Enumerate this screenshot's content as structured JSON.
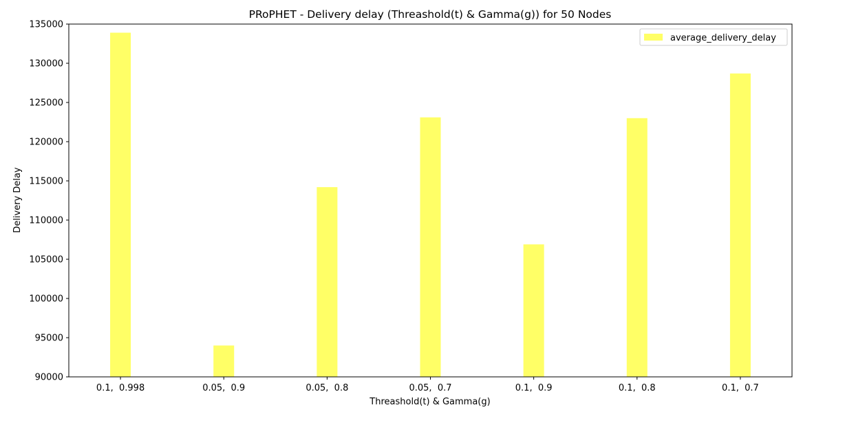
{
  "chart_data": {
    "type": "bar",
    "title": "PRoPHET - Delivery delay (Threashold(t) & Gamma(g)) for 50 Nodes",
    "xlabel": "Threashold(t) & Gamma(g)",
    "ylabel": "Delivery Delay",
    "categories": [
      "0.1,  0.998",
      "0.05,  0.9",
      "0.05,  0.8",
      "0.05,  0.7",
      "0.1,  0.9",
      "0.1,  0.8",
      "0.1,  0.7"
    ],
    "series": [
      {
        "name": "average_delivery_delay",
        "values": [
          133900,
          94000,
          114200,
          123100,
          106900,
          123000,
          128700
        ],
        "color": "#ffff66"
      }
    ],
    "ylim": [
      90000,
      135000
    ],
    "yticks": [
      90000,
      95000,
      100000,
      105000,
      110000,
      115000,
      120000,
      125000,
      130000,
      135000
    ],
    "legend_position": "top-right",
    "grid": false
  }
}
